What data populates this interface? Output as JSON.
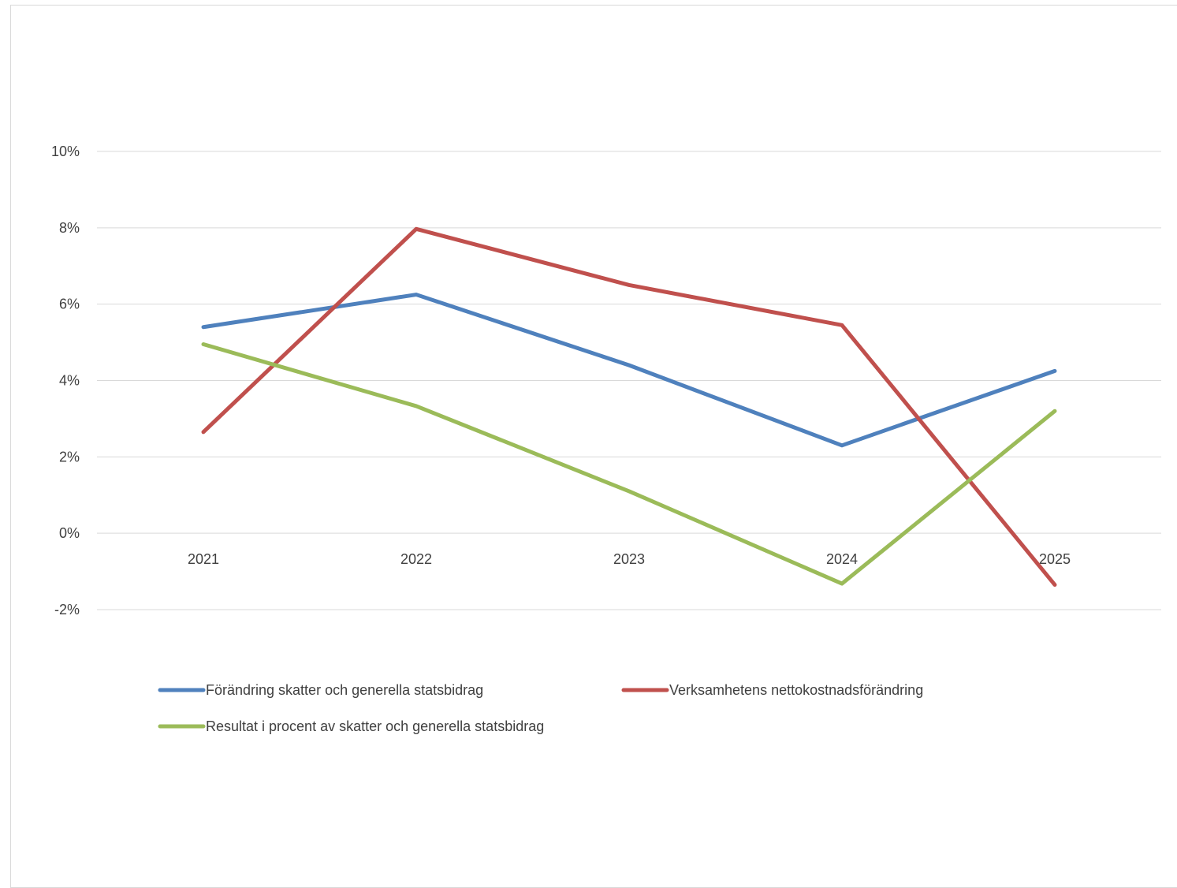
{
  "chart_data": {
    "type": "line",
    "title": "",
    "xlabel": "",
    "ylabel": "",
    "categories": [
      "2021",
      "2022",
      "2023",
      "2024",
      "2025"
    ],
    "ylim": [
      -0.02,
      0.1
    ],
    "yticks": [
      -0.02,
      0,
      0.02,
      0.04,
      0.06,
      0.08,
      0.1
    ],
    "ytick_labels": [
      "-2%",
      "0%",
      "2%",
      "4%",
      "6%",
      "8%",
      "10%"
    ],
    "grid": true,
    "legend_position": "bottom",
    "series": [
      {
        "name": "Förändring skatter och generella statsbidrag",
        "color": "#4F81BD",
        "values": [
          0.054,
          0.0625,
          0.044,
          0.023,
          0.0425
        ]
      },
      {
        "name": "Verksamhetens nettokostnadsförändring",
        "color": "#C0504D",
        "values": [
          0.0265,
          0.0797,
          0.065,
          0.0545,
          -0.0135
        ]
      },
      {
        "name": "Resultat i procent av skatter och generella statsbidrag",
        "color": "#9BBB59",
        "values": [
          0.0495,
          0.0333,
          0.011,
          -0.0132,
          0.032
        ]
      }
    ]
  }
}
